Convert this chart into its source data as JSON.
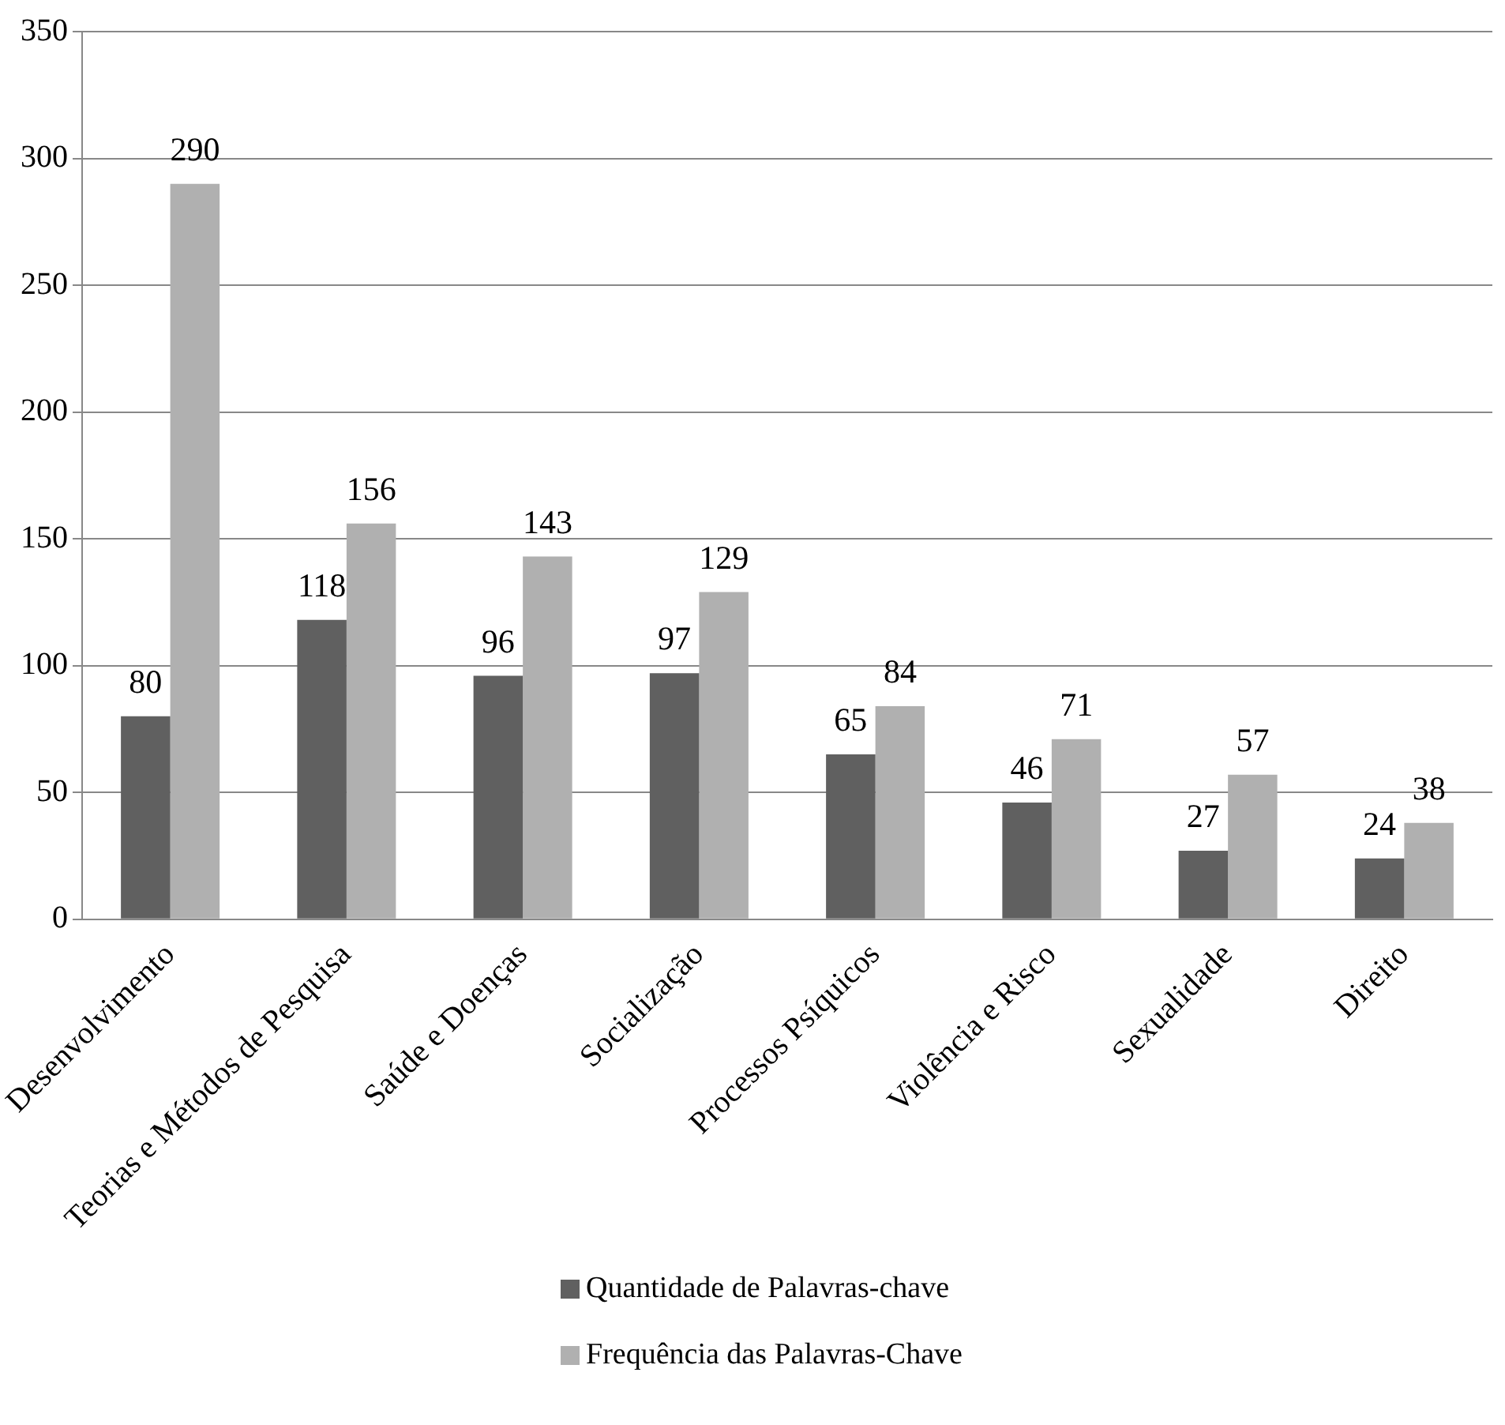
{
  "chart_data": {
    "type": "bar",
    "categories": [
      "Desenvolvimento",
      "Teorias e Métodos de Pesquisa",
      "Saúde e Doenças",
      "Socialização",
      "Processos Psíquicos",
      "Violência e Risco",
      "Sexualidade",
      "Direito"
    ],
    "series": [
      {
        "name": "Quantidade de Palavras-chave",
        "color": "#606060",
        "values": [
          80,
          118,
          96,
          97,
          65,
          46,
          27,
          24
        ]
      },
      {
        "name": "Frequência das Palavras-Chave",
        "color": "#b0b0b0",
        "values": [
          290,
          156,
          143,
          129,
          84,
          71,
          57,
          38
        ]
      }
    ],
    "ylim": [
      0,
      350
    ],
    "yticks": [
      0,
      50,
      100,
      150,
      200,
      250,
      300,
      350
    ],
    "grid": "y",
    "legend": "bottom",
    "data_labels": true
  }
}
